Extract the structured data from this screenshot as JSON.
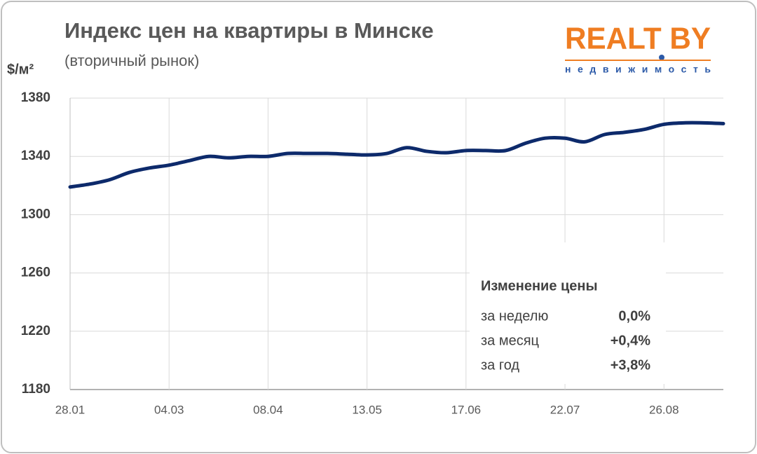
{
  "chart_data": {
    "type": "line",
    "title": "Индекс цен на квартиры в Минске",
    "subtitle": "(вторичный рынок)",
    "y_label": "$/м²",
    "logo": {
      "name": "REALT BY",
      "tagline": "недвижимость"
    },
    "categories": [
      "28.01",
      null,
      null,
      null,
      null,
      "04.03",
      null,
      null,
      null,
      null,
      "08.04",
      null,
      null,
      null,
      null,
      "13.05",
      null,
      null,
      null,
      null,
      "17.06",
      null,
      null,
      null,
      null,
      "22.07",
      null,
      null,
      null,
      null,
      "26.08",
      null,
      null,
      null
    ],
    "series": [
      {
        "name": "Индекс цен",
        "color": "#0d2a6b",
        "values": [
          1319,
          1321,
          1324,
          1329,
          1332,
          1334,
          1337,
          1340,
          1339,
          1340,
          1340,
          1342,
          1342,
          1342,
          1341.5,
          1341,
          1342,
          1346,
          1343.5,
          1342.5,
          1344,
          1344,
          1344,
          1349,
          1352.5,
          1352.5,
          1350,
          1355,
          1356.5,
          1358.5,
          1362,
          1363,
          1363,
          1362.5
        ]
      }
    ],
    "ylim": [
      1180,
      1380
    ],
    "yticks": [
      1180,
      1220,
      1260,
      1300,
      1340,
      1380
    ],
    "grid": true,
    "inset": {
      "title": "Изменение цены",
      "rows": [
        [
          "за неделю",
          "0,0%"
        ],
        [
          "за месяц",
          "+0,4%"
        ],
        [
          "за год",
          "+3,8%"
        ]
      ]
    }
  }
}
